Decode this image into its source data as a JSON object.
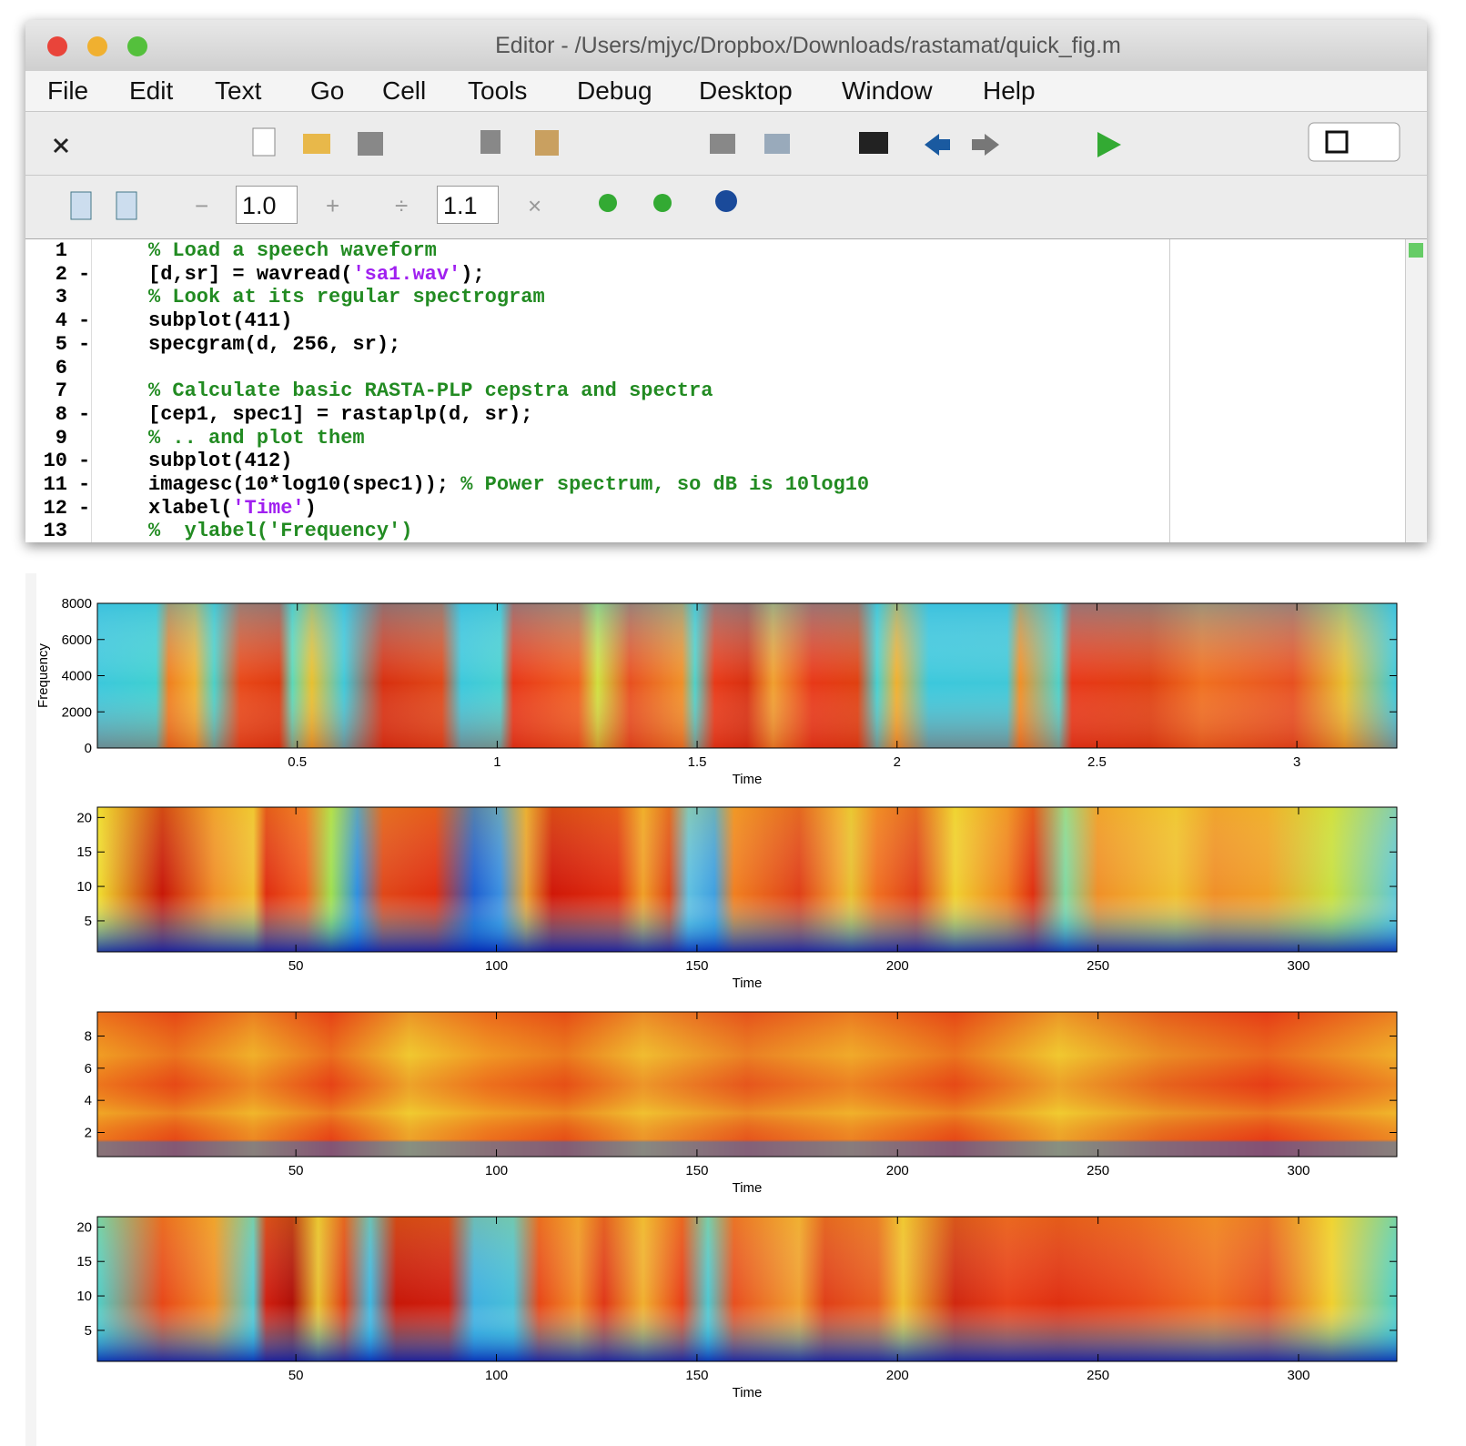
{
  "editor": {
    "title": "Editor - /Users/mjyc/Dropbox/Downloads/rastamat/quick_fig.m",
    "menu": [
      "File",
      "Edit",
      "Text",
      "Go",
      "Cell",
      "Tools",
      "Debug",
      "Desktop",
      "Window",
      "Help"
    ],
    "cell_toolbar": {
      "minus": "−",
      "value_a": "1.0",
      "plus": "+",
      "divide": "÷",
      "value_b": "1.1",
      "times": "×"
    },
    "code": [
      {
        "number": 1,
        "segments": [
          {
            "text": "% Load a speech waveform",
            "color": "#228b22"
          }
        ]
      },
      {
        "number": 2,
        "marker": "-",
        "segments": [
          {
            "text": "[d,sr] = wavread(",
            "color": "#000000"
          },
          {
            "text": "'sa1.wav'",
            "color": "#a020f0"
          },
          {
            "text": ");",
            "color": "#000000"
          }
        ]
      },
      {
        "number": 3,
        "segments": [
          {
            "text": "% Look at its regular spectrogram",
            "color": "#228b22"
          }
        ]
      },
      {
        "number": 4,
        "marker": "-",
        "segments": [
          {
            "text": "subplot(411)",
            "color": "#000000"
          }
        ]
      },
      {
        "number": 5,
        "marker": "-",
        "segments": [
          {
            "text": "specgram(d, 256, sr);",
            "color": "#000000"
          }
        ]
      },
      {
        "number": 6,
        "segments": []
      },
      {
        "number": 7,
        "segments": [
          {
            "text": "% Calculate basic RASTA-PLP cepstra and spectra",
            "color": "#228b22"
          }
        ]
      },
      {
        "number": 8,
        "marker": "-",
        "segments": [
          {
            "text": "[cep1, spec1] = rastaplp(d, sr);",
            "color": "#000000"
          }
        ]
      },
      {
        "number": 9,
        "segments": [
          {
            "text": "% .. and plot them",
            "color": "#228b22"
          }
        ]
      },
      {
        "number": 10,
        "marker": "-",
        "segments": [
          {
            "text": "subplot(412)",
            "color": "#000000"
          }
        ]
      },
      {
        "number": 11,
        "marker": "-",
        "segments": [
          {
            "text": "imagesc(10*log10(spec1)); ",
            "color": "#000000"
          },
          {
            "text": "% Power spectrum, so dB is 10log10",
            "color": "#228b22"
          }
        ]
      },
      {
        "number": 12,
        "marker": "-",
        "segments": [
          {
            "text": "xlabel(",
            "color": "#000000"
          },
          {
            "text": "'Time'",
            "color": "#a020f0"
          },
          {
            "text": ")",
            "color": "#000000"
          }
        ]
      },
      {
        "number": 13,
        "segments": [
          {
            "text": "%  ylabel('Frequency')",
            "color": "#228b22"
          }
        ]
      }
    ]
  },
  "chart_data": [
    {
      "type": "heatmap",
      "xlabel": "Time",
      "ylabel": "Frequency",
      "xlim": [
        0,
        3.25
      ],
      "ylim": [
        0,
        8000
      ],
      "xticks": [
        0.5,
        1,
        1.5,
        2,
        2.5,
        3
      ],
      "yticks": [
        0,
        2000,
        4000,
        6000,
        8000
      ]
    },
    {
      "type": "heatmap",
      "xlabel": "Time",
      "xlim": [
        0.5,
        324.5
      ],
      "ylim": [
        0.5,
        21.5
      ],
      "xticks": [
        50,
        100,
        150,
        200,
        250,
        300
      ],
      "yticks": [
        5,
        10,
        15,
        20
      ]
    },
    {
      "type": "heatmap",
      "xlabel": "Time",
      "xlim": [
        0.5,
        324.5
      ],
      "ylim": [
        0.5,
        9.5
      ],
      "xticks": [
        50,
        100,
        150,
        200,
        250,
        300
      ],
      "yticks": [
        2,
        4,
        6,
        8
      ]
    },
    {
      "type": "heatmap",
      "xlabel": "Time",
      "xlim": [
        0.5,
        324.5
      ],
      "ylim": [
        0.5,
        21.5
      ],
      "xticks": [
        50,
        100,
        150,
        200,
        250,
        300
      ],
      "yticks": [
        5,
        10,
        15,
        20
      ]
    }
  ]
}
